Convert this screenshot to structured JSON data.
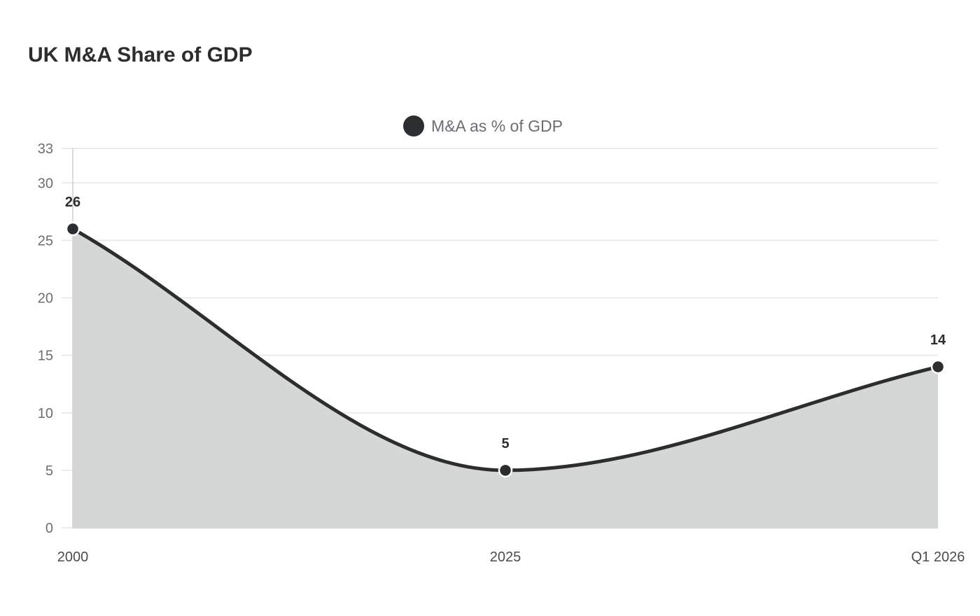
{
  "chart_data": {
    "type": "area",
    "title": "UK M&A Share of GDP",
    "categories": [
      "2000",
      "2025",
      "Q1 2026"
    ],
    "series": [
      {
        "name": "M&A as % of GDP",
        "values": [
          26,
          5,
          14
        ]
      }
    ],
    "ylim": [
      0,
      33
    ],
    "yticks": [
      0,
      5,
      10,
      15,
      20,
      25,
      30,
      33
    ],
    "grid": true,
    "legend_position": "top-center",
    "colors": {
      "line": "#2b2d2f",
      "fill": "#d5d6d6",
      "grid": "#e6e6e6"
    }
  }
}
